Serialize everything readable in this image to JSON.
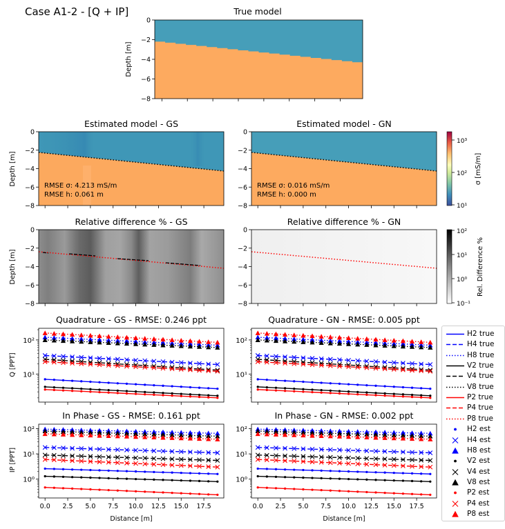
{
  "figure": {
    "suptitle": "Case A1-2 - [Q + IP]"
  },
  "true_model": {
    "title": "True model",
    "ylabel": "Depth [m]",
    "ytick_labels": [
      "0",
      "−2",
      "−4",
      "−6",
      "−8"
    ],
    "layer_colors": {
      "top": "#469eb9",
      "bottom": "#fdaa5f"
    },
    "interface_depth_start": -2.2,
    "interface_depth_end": -4.3
  },
  "model_panels": [
    {
      "title": "Estimated model - GS",
      "ylabel": "Depth [m]",
      "ytick_labels": [
        "0",
        "−2",
        "−4",
        "−6",
        "−8"
      ],
      "rmse_sigma": "RMSE σ: 4.213 mS/m",
      "rmse_h": "RMSE h: 0.061 m"
    },
    {
      "title": "Estimated model - GN",
      "ylabel": "",
      "ytick_labels": [
        "0",
        "−2",
        "−4",
        "−6",
        "−8"
      ],
      "rmse_sigma": "RMSE σ: 0.016 mS/m",
      "rmse_h": "RMSE h: 0.000 m"
    }
  ],
  "colorbar_sigma": {
    "label": "σ [mS/m]",
    "tick_labels": [
      "10³",
      "10²",
      "10¹"
    ]
  },
  "diff_panels": [
    {
      "title": "Relative difference % - GS",
      "ylabel": "Depth [m]",
      "ytick_labels": [
        "0",
        "−2",
        "−4",
        "−6",
        "−8"
      ]
    },
    {
      "title": "Relative difference % - GN",
      "ylabel": "",
      "ytick_labels": [
        "0",
        "−2",
        "−4",
        "−6",
        "−8"
      ]
    }
  ],
  "colorbar_diff": {
    "label": "Rel. Difference %",
    "tick_labels": [
      "10²",
      "10¹",
      "10⁰",
      "10⁻¹"
    ]
  },
  "signal_axes": {
    "xlabel": "Distance [m]",
    "x_tick_labels": [
      "0.0",
      "2.5",
      "5.0",
      "7.5",
      "10.0",
      "12.5",
      "15.0",
      "17.5"
    ],
    "q_ylabel": "Q [PPT]",
    "ip_ylabel": "IP [PPT]",
    "q_ytick_labels": [
      "10²",
      "10¹"
    ],
    "ip_ytick_labels": [
      "10²",
      "10¹",
      "10⁰"
    ]
  },
  "signal_panels": [
    {
      "title": "Quadrature - GS - RMSE: 0.246 ppt"
    },
    {
      "title": "Quadrature - GN - RMSE: 0.005 ppt"
    },
    {
      "title": "In Phase - GS - RMSE: 0.161 ppt"
    },
    {
      "title": "In Phase - GN - RMSE: 0.002 ppt"
    }
  ],
  "legend": {
    "entries": [
      {
        "label": "H2 true",
        "color": "#0000ff",
        "style": "solid"
      },
      {
        "label": "H4 true",
        "color": "#0000ff",
        "style": "dashed"
      },
      {
        "label": "H8 true",
        "color": "#0000ff",
        "style": "dotted"
      },
      {
        "label": "V2 true",
        "color": "#000000",
        "style": "solid"
      },
      {
        "label": "V4 true",
        "color": "#000000",
        "style": "dashed"
      },
      {
        "label": "V8 true",
        "color": "#000000",
        "style": "dotted"
      },
      {
        "label": "P2 true",
        "color": "#ff0000",
        "style": "solid"
      },
      {
        "label": "P4 true",
        "color": "#ff0000",
        "style": "dashed"
      },
      {
        "label": "P8 true",
        "color": "#ff0000",
        "style": "dotted"
      },
      {
        "label": "H2 est",
        "color": "#0000ff",
        "marker": "dot"
      },
      {
        "label": "H4 est",
        "color": "#0000ff",
        "marker": "x"
      },
      {
        "label": "H8 est",
        "color": "#0000ff",
        "marker": "triangle"
      },
      {
        "label": "V2 est",
        "color": "#000000",
        "marker": "dot"
      },
      {
        "label": "V4 est",
        "color": "#000000",
        "marker": "x"
      },
      {
        "label": "V8 est",
        "color": "#000000",
        "marker": "triangle"
      },
      {
        "label": "P2 est",
        "color": "#ff0000",
        "marker": "dot"
      },
      {
        "label": "P4 est",
        "color": "#ff0000",
        "marker": "x"
      },
      {
        "label": "P8 est",
        "color": "#ff0000",
        "marker": "triangle"
      }
    ]
  },
  "chart_data": [
    {
      "type": "line",
      "title": "Quadrature - GS - RMSE: 0.246 ppt",
      "xlabel": "Distance [m]",
      "ylabel": "Q [PPT]",
      "xlim": [
        -0.7,
        19.7
      ],
      "ylim": [
        1.5,
        220
      ],
      "yscale": "log",
      "x": [
        0,
        1,
        2,
        3,
        4,
        5,
        6,
        7,
        8,
        9,
        10,
        11,
        12,
        13,
        14,
        15,
        16,
        17,
        18,
        19
      ],
      "series": [
        {
          "name": "H2",
          "color": "#0000ff",
          "marker": "dot",
          "start": 7.0,
          "end": 3.7
        },
        {
          "name": "H4",
          "color": "#0000ff",
          "marker": "x",
          "start": 35,
          "end": 19
        },
        {
          "name": "H8",
          "color": "#0000ff",
          "marker": "triangle",
          "start": 120,
          "end": 70
        },
        {
          "name": "V2",
          "color": "#000000",
          "marker": "dot",
          "start": 4.2,
          "end": 2.3
        },
        {
          "name": "V4",
          "color": "#000000",
          "marker": "x",
          "start": 27,
          "end": 13
        },
        {
          "name": "V8",
          "color": "#000000",
          "marker": "triangle",
          "start": 100,
          "end": 60
        },
        {
          "name": "P2",
          "color": "#ff0000",
          "marker": "dot",
          "start": 3.5,
          "end": 2.0
        },
        {
          "name": "P4",
          "color": "#ff0000",
          "marker": "x",
          "start": 23,
          "end": 12
        },
        {
          "name": "P8",
          "color": "#ff0000",
          "marker": "triangle",
          "start": 160,
          "end": 85
        }
      ]
    },
    {
      "type": "line",
      "title": "Quadrature - GN - RMSE: 0.005 ppt",
      "xlabel": "Distance [m]",
      "ylabel": "",
      "xlim": [
        -0.7,
        19.7
      ],
      "ylim": [
        1.5,
        220
      ],
      "yscale": "log",
      "x": [
        0,
        1,
        2,
        3,
        4,
        5,
        6,
        7,
        8,
        9,
        10,
        11,
        12,
        13,
        14,
        15,
        16,
        17,
        18,
        19
      ],
      "series": [
        {
          "name": "H2",
          "color": "#0000ff",
          "marker": "dot",
          "start": 7.0,
          "end": 3.7
        },
        {
          "name": "H4",
          "color": "#0000ff",
          "marker": "x",
          "start": 35,
          "end": 19
        },
        {
          "name": "H8",
          "color": "#0000ff",
          "marker": "triangle",
          "start": 120,
          "end": 70
        },
        {
          "name": "V2",
          "color": "#000000",
          "marker": "dot",
          "start": 4.2,
          "end": 2.3
        },
        {
          "name": "V4",
          "color": "#000000",
          "marker": "x",
          "start": 27,
          "end": 13
        },
        {
          "name": "V8",
          "color": "#000000",
          "marker": "triangle",
          "start": 100,
          "end": 60
        },
        {
          "name": "P2",
          "color": "#ff0000",
          "marker": "dot",
          "start": 3.5,
          "end": 2.0
        },
        {
          "name": "P4",
          "color": "#ff0000",
          "marker": "x",
          "start": 23,
          "end": 12
        },
        {
          "name": "P8",
          "color": "#ff0000",
          "marker": "triangle",
          "start": 160,
          "end": 85
        }
      ]
    },
    {
      "type": "line",
      "title": "In Phase - GS - RMSE: 0.161 ppt",
      "xlabel": "Distance [m]",
      "ylabel": "IP [PPT]",
      "xlim": [
        -0.7,
        19.7
      ],
      "ylim": [
        0.18,
        150
      ],
      "yscale": "log",
      "x": [
        0,
        1,
        2,
        3,
        4,
        5,
        6,
        7,
        8,
        9,
        10,
        11,
        12,
        13,
        14,
        15,
        16,
        17,
        18,
        19
      ],
      "series": [
        {
          "name": "H2",
          "color": "#0000ff",
          "marker": "dot",
          "start": 2.6,
          "end": 1.6
        },
        {
          "name": "H4",
          "color": "#0000ff",
          "marker": "x",
          "start": 18,
          "end": 11
        },
        {
          "name": "H8",
          "color": "#0000ff",
          "marker": "triangle",
          "start": 95,
          "end": 65
        },
        {
          "name": "V2",
          "color": "#000000",
          "marker": "dot",
          "start": 1.3,
          "end": 0.8
        },
        {
          "name": "V4",
          "color": "#000000",
          "marker": "x",
          "start": 9,
          "end": 5.5
        },
        {
          "name": "V8",
          "color": "#000000",
          "marker": "triangle",
          "start": 80,
          "end": 50
        },
        {
          "name": "P2",
          "color": "#ff0000",
          "marker": "dot",
          "start": 0.47,
          "end": 0.24
        },
        {
          "name": "P4",
          "color": "#ff0000",
          "marker": "x",
          "start": 6,
          "end": 3
        },
        {
          "name": "P8",
          "color": "#ff0000",
          "marker": "triangle",
          "start": 62,
          "end": 38
        }
      ]
    },
    {
      "type": "line",
      "title": "In Phase - GN - RMSE: 0.002 ppt",
      "xlabel": "Distance [m]",
      "ylabel": "",
      "xlim": [
        -0.7,
        19.7
      ],
      "ylim": [
        0.18,
        150
      ],
      "yscale": "log",
      "x": [
        0,
        1,
        2,
        3,
        4,
        5,
        6,
        7,
        8,
        9,
        10,
        11,
        12,
        13,
        14,
        15,
        16,
        17,
        18,
        19
      ],
      "series": [
        {
          "name": "H2",
          "color": "#0000ff",
          "marker": "dot",
          "start": 2.6,
          "end": 1.6
        },
        {
          "name": "H4",
          "color": "#0000ff",
          "marker": "x",
          "start": 18,
          "end": 11
        },
        {
          "name": "H8",
          "color": "#0000ff",
          "marker": "triangle",
          "start": 95,
          "end": 65
        },
        {
          "name": "V2",
          "color": "#000000",
          "marker": "dot",
          "start": 1.3,
          "end": 0.8
        },
        {
          "name": "V4",
          "color": "#000000",
          "marker": "x",
          "start": 9,
          "end": 5.5
        },
        {
          "name": "V8",
          "color": "#000000",
          "marker": "triangle",
          "start": 80,
          "end": 50
        },
        {
          "name": "P2",
          "color": "#ff0000",
          "marker": "dot",
          "start": 0.47,
          "end": 0.24
        },
        {
          "name": "P4",
          "color": "#ff0000",
          "marker": "x",
          "start": 6,
          "end": 3
        },
        {
          "name": "P8",
          "color": "#ff0000",
          "marker": "triangle",
          "start": 62,
          "end": 38
        }
      ]
    }
  ]
}
